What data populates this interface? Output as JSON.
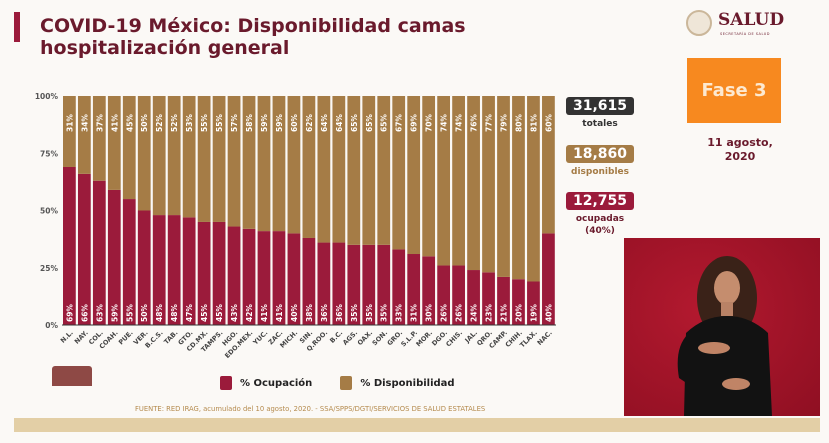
{
  "header": {
    "title": "COVID-19 México: Disponibilidad camas hospitalización general"
  },
  "logo": {
    "name": "SALUD",
    "subtitle": "SECRETARÍA DE SALUD"
  },
  "phase": {
    "label": "Fase 3",
    "color": "#f7891f"
  },
  "date": {
    "line1": "11 agosto,",
    "line2": "2020"
  },
  "stats": {
    "total": {
      "value": "31,615",
      "label": "totales",
      "color": "#333333"
    },
    "available": {
      "value": "18,860",
      "label": "disponibles",
      "color": "#a57c46"
    },
    "occupied": {
      "value": "12,755",
      "label": "ocupadas",
      "pct": "(40%)",
      "color": "#9b1b3b"
    }
  },
  "footer": {
    "source": "FUENTE: RED IRAG, acumulado del 10 agosto, 2020. -  SSA/SPPS/DGTI/SERVICIOS DE SALUD ESTATALES"
  },
  "chart_data": {
    "type": "bar",
    "stacked": true,
    "ylim": [
      0,
      100
    ],
    "yticks": [
      "0%",
      "25%",
      "50%",
      "75%",
      "100%"
    ],
    "grid": true,
    "legend_position": "bottom",
    "categories": [
      "N.L.",
      "NAY.",
      "COL.",
      "COAH.",
      "PUE.",
      "VER.",
      "B.C.S.",
      "TAB.",
      "GTO.",
      "CD.MX.",
      "TAMPS.",
      "HGO.",
      "EDO.MEX.",
      "YUC.",
      "ZAC.",
      "MICH.",
      "SIN.",
      "Q.ROO.",
      "B.C.",
      "AGS.",
      "OAX.",
      "SON.",
      "GRO.",
      "S.L.P.",
      "MOR.",
      "DGO.",
      "CHIS.",
      "JAL.",
      "QRO.",
      "CAMP.",
      "CHIH.",
      "TLAX.",
      "NAC."
    ],
    "series": [
      {
        "name": "% Ocupación",
        "color": "#9b1b3b",
        "values": [
          69,
          66,
          63,
          59,
          55,
          50,
          48,
          48,
          47,
          45,
          45,
          43,
          42,
          41,
          41,
          40,
          38,
          36,
          36,
          35,
          35,
          35,
          33,
          31,
          30,
          26,
          26,
          24,
          23,
          21,
          20,
          19,
          40
        ]
      },
      {
        "name": "% Disponibilidad",
        "color": "#a57c46",
        "values": [
          31,
          34,
          37,
          41,
          45,
          50,
          52,
          52,
          53,
          55,
          55,
          57,
          58,
          59,
          59,
          60,
          62,
          64,
          64,
          65,
          65,
          65,
          67,
          69,
          70,
          74,
          74,
          76,
          77,
          79,
          80,
          81,
          60
        ]
      }
    ]
  }
}
